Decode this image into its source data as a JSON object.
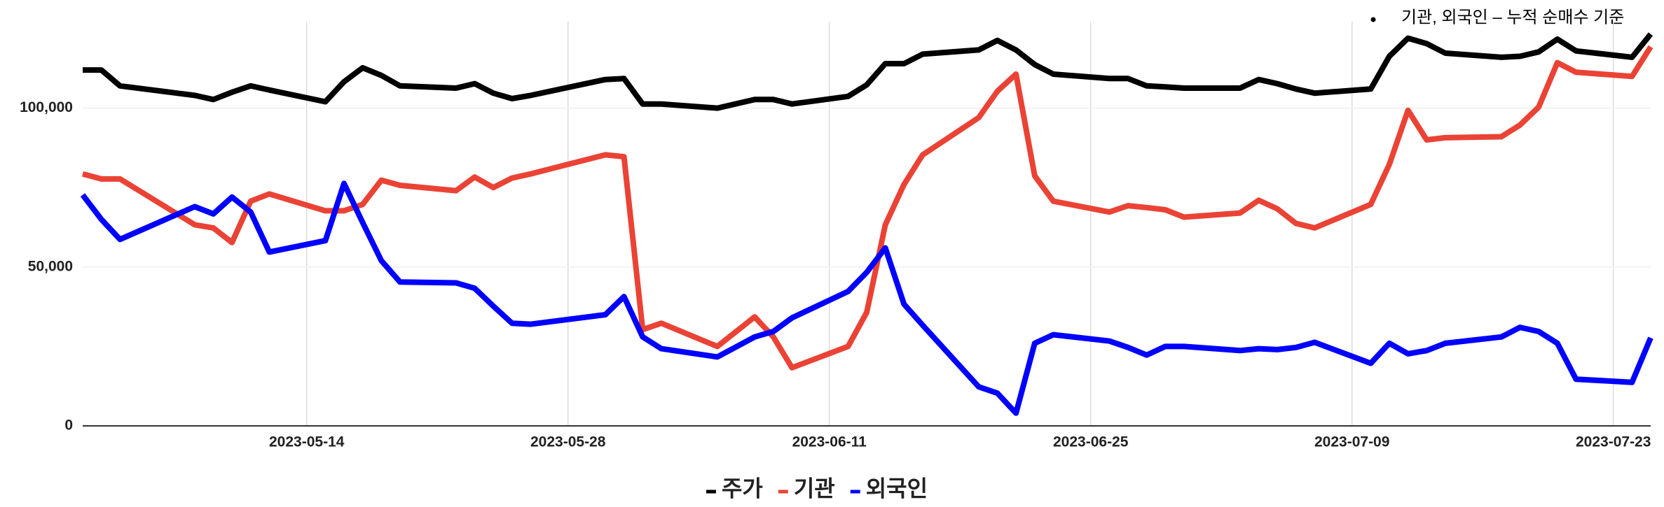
{
  "chart_data": {
    "type": "line",
    "annotation": "기관, 외국인 – 누적 순매수 기준",
    "x": [
      "2023-05-02",
      "2023-05-03",
      "2023-05-04",
      "2023-05-08",
      "2023-05-09",
      "2023-05-10",
      "2023-05-11",
      "2023-05-12",
      "2023-05-15",
      "2023-05-16",
      "2023-05-17",
      "2023-05-18",
      "2023-05-19",
      "2023-05-22",
      "2023-05-23",
      "2023-05-24",
      "2023-05-25",
      "2023-05-26",
      "2023-05-30",
      "2023-05-31",
      "2023-06-01",
      "2023-06-02",
      "2023-06-05",
      "2023-06-07",
      "2023-06-08",
      "2023-06-09",
      "2023-06-12",
      "2023-06-13",
      "2023-06-14",
      "2023-06-15",
      "2023-06-16",
      "2023-06-19",
      "2023-06-20",
      "2023-06-21",
      "2023-06-22",
      "2023-06-23",
      "2023-06-26",
      "2023-06-27",
      "2023-06-28",
      "2023-06-29",
      "2023-06-30",
      "2023-07-03",
      "2023-07-04",
      "2023-07-05",
      "2023-07-06",
      "2023-07-07",
      "2023-07-10",
      "2023-07-11",
      "2023-07-12",
      "2023-07-13",
      "2023-07-14",
      "2023-07-17",
      "2023-07-18",
      "2023-07-19",
      "2023-07-20",
      "2023-07-21",
      "2023-07-24",
      "2023-07-25"
    ],
    "series": [
      {
        "name": "주가",
        "color": "#000000",
        "values": [
          112000,
          112000,
          107000,
          104000,
          102700,
          105000,
          107000,
          105700,
          102000,
          108300,
          112700,
          110300,
          107000,
          106300,
          107700,
          104700,
          103000,
          104000,
          109000,
          109300,
          101300,
          101300,
          100000,
          102700,
          102700,
          101300,
          103700,
          107300,
          114000,
          114000,
          117000,
          118300,
          121300,
          118300,
          113700,
          110700,
          109300,
          109300,
          107000,
          106700,
          106300,
          106300,
          109000,
          107700,
          106000,
          104700,
          106000,
          116300,
          122000,
          120300,
          117300,
          116000,
          116300,
          117700,
          121700,
          118000,
          116000,
          123300
        ]
      },
      {
        "name": "기관",
        "color": "#ea4335",
        "values": [
          79300,
          77700,
          77700,
          63300,
          62300,
          57700,
          70700,
          73000,
          67700,
          67700,
          69700,
          77300,
          75700,
          74000,
          78300,
          75000,
          78000,
          79300,
          85300,
          84700,
          30300,
          32300,
          25000,
          34300,
          28000,
          18300,
          25000,
          35700,
          63300,
          76000,
          85300,
          97000,
          105300,
          110700,
          78700,
          70700,
          67300,
          69300,
          68700,
          68000,
          65700,
          67000,
          71000,
          68300,
          63700,
          62300,
          69700,
          82300,
          99300,
          90000,
          90700,
          91000,
          94700,
          100300,
          114300,
          111300,
          110000,
          119300
        ]
      },
      {
        "name": "외국인",
        "color": "#0000ff",
        "values": [
          72700,
          65000,
          58700,
          69000,
          66700,
          72000,
          67300,
          54700,
          58300,
          76300,
          64000,
          52000,
          45300,
          45000,
          43300,
          37700,
          32300,
          32000,
          35000,
          40700,
          28000,
          24300,
          21700,
          28000,
          29700,
          34000,
          42300,
          48300,
          56000,
          38300,
          31700,
          12300,
          10300,
          4000,
          26000,
          28700,
          26700,
          24700,
          22300,
          25000,
          25000,
          23700,
          24300,
          24000,
          24700,
          26300,
          19700,
          26000,
          22700,
          23700,
          26000,
          28000,
          31000,
          29700,
          26000,
          14700,
          13700,
          27700
        ]
      }
    ],
    "xlim": [
      "2023-05-02",
      "2023-07-25"
    ],
    "xticks": [
      "2023-05-14",
      "2023-05-28",
      "2023-06-11",
      "2023-06-25",
      "2023-07-09",
      "2023-07-23"
    ],
    "ylim": [
      0,
      125000
    ],
    "yticks": [
      0,
      {
        "value": 50000,
        "label": "50,000"
      },
      {
        "value": 100000,
        "label": "100,000"
      }
    ],
    "grid": true,
    "legend": "bottom"
  }
}
